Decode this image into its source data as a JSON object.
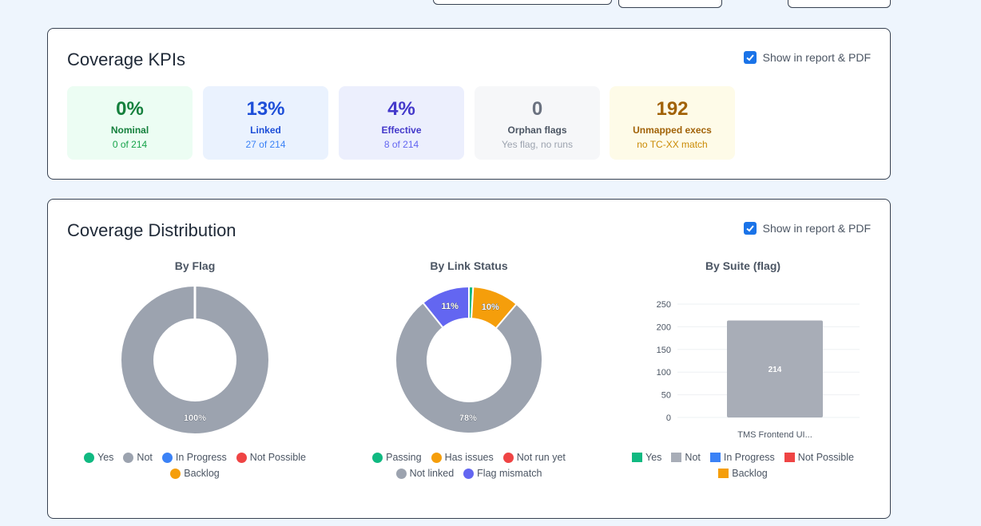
{
  "kpi_section": {
    "title": "Coverage KPIs",
    "show_label": "Show in report & PDF",
    "show_checked": true,
    "cards": [
      {
        "value": "0%",
        "label": "Nominal",
        "sub": "0 of 214",
        "bg": "#ecfdf3",
        "value_color": "#15803d",
        "label_color": "#15803d",
        "sub_color": "#16a34a"
      },
      {
        "value": "13%",
        "label": "Linked",
        "sub": "27 of 214",
        "bg": "#eaf2fe",
        "value_color": "#1d4ed8",
        "label_color": "#1d4ed8",
        "sub_color": "#3b82f6"
      },
      {
        "value": "4%",
        "label": "Effective",
        "sub": "8 of 214",
        "bg": "#eceffd",
        "value_color": "#4338ca",
        "label_color": "#4338ca",
        "sub_color": "#6366f1"
      },
      {
        "value": "0",
        "label": "Orphan flags",
        "sub": "Yes flag, no runs",
        "bg": "#f6f7f9",
        "value_color": "#6b7280",
        "label_color": "#4b5563",
        "sub_color": "#9ca3af"
      },
      {
        "value": "192",
        "label": "Unmapped execs",
        "sub": "no TC-XX match",
        "bg": "#fefbe8",
        "value_color": "#a16207",
        "label_color": "#a16207",
        "sub_color": "#ca8a04"
      }
    ]
  },
  "distribution_section": {
    "title": "Coverage Distribution",
    "show_label": "Show in report & PDF",
    "show_checked": true
  },
  "chart_data": [
    {
      "type": "pie",
      "title": "By Flag",
      "slices": [
        {
          "label": "Yes",
          "value": 0,
          "color": "#10b981"
        },
        {
          "label": "Not",
          "value": 214,
          "color": "#9ca3af"
        },
        {
          "label": "In Progress",
          "value": 0,
          "color": "#3b82f6"
        },
        {
          "label": "Not Possible",
          "value": 0,
          "color": "#ef4444"
        },
        {
          "label": "Backlog",
          "value": 0,
          "color": "#f59e0b"
        }
      ],
      "data_labels": [
        "100%"
      ]
    },
    {
      "type": "pie",
      "title": "By Link Status",
      "slices": [
        {
          "label": "Passing",
          "value": 2,
          "color": "#10b981"
        },
        {
          "label": "Has issues",
          "value": 22,
          "color": "#f59e0b"
        },
        {
          "label": "Not run yet",
          "value": 0,
          "color": "#ef4444"
        },
        {
          "label": "Not linked",
          "value": 167,
          "color": "#9ca3af"
        },
        {
          "label": "Flag mismatch",
          "value": 23,
          "color": "#6366f1"
        }
      ],
      "data_labels": [
        "10%",
        "78%",
        "11%"
      ]
    },
    {
      "type": "bar",
      "title": "By Suite (flag)",
      "categories": [
        "TMS Frontend UI..."
      ],
      "series": [
        {
          "name": "Yes",
          "values": [
            0
          ],
          "color": "#10b981"
        },
        {
          "name": "Not",
          "values": [
            214
          ],
          "color": "#a8adb7"
        },
        {
          "name": "In Progress",
          "values": [
            0
          ],
          "color": "#3b82f6"
        },
        {
          "name": "Not Possible",
          "values": [
            0
          ],
          "color": "#ef4444"
        },
        {
          "name": "Backlog",
          "values": [
            0
          ],
          "color": "#f59e0b"
        }
      ],
      "ylim": [
        0,
        250
      ],
      "yticks": [
        "0",
        "50",
        "100",
        "150",
        "200",
        "250"
      ],
      "bar_label": "214"
    }
  ]
}
